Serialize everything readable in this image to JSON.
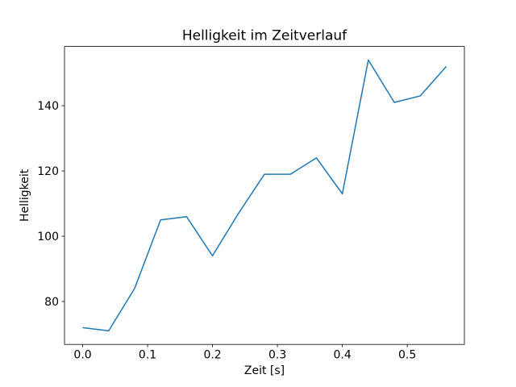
{
  "figure": {
    "background": "#ffffff"
  },
  "chart_data": {
    "type": "line",
    "title": "Helligkeit im Zeitverlauf",
    "xlabel": "Zeit [s]",
    "ylabel": "Helligkeit",
    "series": [
      {
        "name": "Helligkeit",
        "x": [
          0.0,
          0.04,
          0.08,
          0.12,
          0.16,
          0.2,
          0.24,
          0.28,
          0.32,
          0.36,
          0.4,
          0.44,
          0.48,
          0.52,
          0.56
        ],
        "y": [
          72,
          71,
          84,
          105,
          106,
          94,
          107,
          119,
          119,
          124,
          113,
          154,
          141,
          143,
          152
        ],
        "color": "#1f77b4",
        "line_width": 1.5
      }
    ],
    "x_ticks": {
      "values": [
        0.0,
        0.1,
        0.2,
        0.3,
        0.4,
        0.5
      ],
      "labels": [
        "0.0",
        "0.1",
        "0.2",
        "0.3",
        "0.4",
        "0.5"
      ]
    },
    "y_ticks": {
      "values": [
        80,
        100,
        120,
        140
      ],
      "labels": [
        "80",
        "100",
        "120",
        "140"
      ]
    },
    "xlim": [
      -0.028,
      0.588
    ],
    "ylim": [
      66.85,
      158.15
    ],
    "grid": false,
    "legend": null,
    "axes_color": "#000000",
    "text_color": "#000000",
    "plot_background": "#ffffff"
  }
}
